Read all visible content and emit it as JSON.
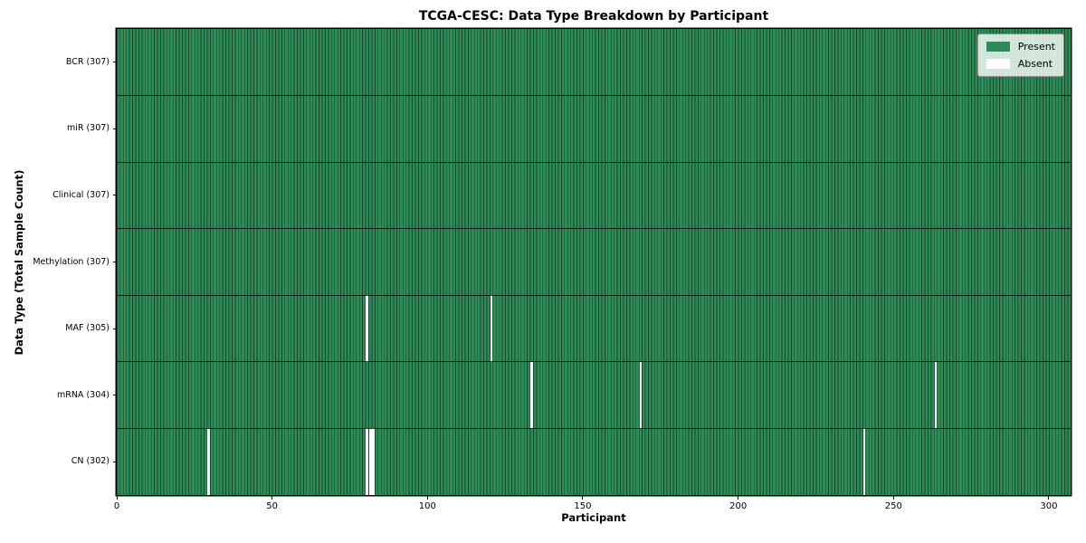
{
  "chart_data": {
    "type": "heatmap",
    "title": "TCGA-CESC: Data Type Breakdown by Participant",
    "xlabel": "Participant",
    "ylabel": "Data Type (Total Sample Count)",
    "n_participants": 307,
    "x_ticks": [
      0,
      50,
      100,
      150,
      200,
      250,
      300
    ],
    "colors": {
      "present": "#2e8b57",
      "absent": "#ffffff",
      "grid_line": "rgba(0,0,0,0.5)"
    },
    "legend": {
      "position": "upper right",
      "entries": [
        {
          "label": "Present",
          "color": "#2e8b57"
        },
        {
          "label": "Absent",
          "color": "#ffffff"
        }
      ]
    },
    "rows": [
      {
        "label": "BCR (307)",
        "data_type": "BCR",
        "present_count": 307,
        "absent_participants": []
      },
      {
        "label": "miR (307)",
        "data_type": "miR",
        "present_count": 307,
        "absent_participants": []
      },
      {
        "label": "Clinical (307)",
        "data_type": "Clinical",
        "present_count": 307,
        "absent_participants": []
      },
      {
        "label": "Methylation (307)",
        "data_type": "Methylation",
        "present_count": 307,
        "absent_participants": []
      },
      {
        "label": "MAF (305)",
        "data_type": "MAF",
        "present_count": 305,
        "absent_participants": [
          80,
          120
        ]
      },
      {
        "label": "mRNA (304)",
        "data_type": "mRNA",
        "present_count": 304,
        "absent_participants": [
          133,
          168,
          263
        ]
      },
      {
        "label": "CN (302)",
        "data_type": "CN",
        "present_count": 302,
        "absent_participants": [
          29,
          80,
          81,
          82,
          240
        ]
      }
    ]
  }
}
